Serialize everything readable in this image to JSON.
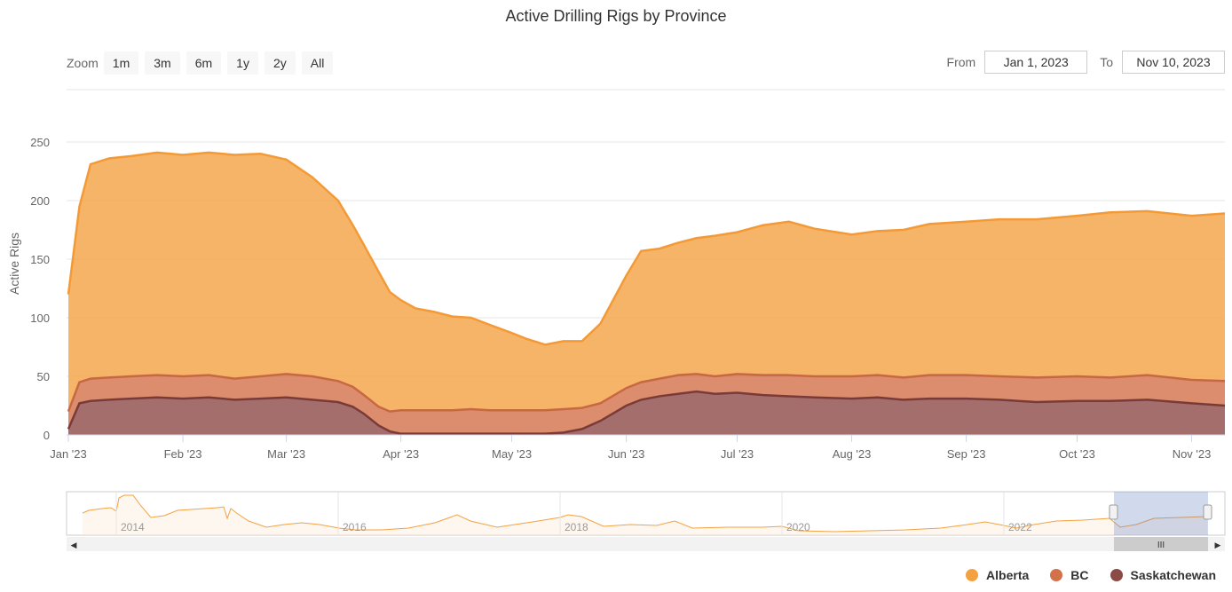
{
  "title": "Active Drilling Rigs by Province",
  "zoom": {
    "label": "Zoom",
    "buttons": [
      "1m",
      "3m",
      "6m",
      "1y",
      "2y",
      "All"
    ]
  },
  "range": {
    "from_label": "From",
    "from_value": "Jan 1, 2023",
    "to_label": "To",
    "to_value": "Nov 10, 2023"
  },
  "colors": {
    "alberta": "#f4a142",
    "bc": "#d2714a",
    "saskatchewan": "#8c4a47"
  },
  "navigator": {
    "years": [
      "2014",
      "2016",
      "2018",
      "2020",
      "2022"
    ]
  },
  "chart_data": {
    "type": "area",
    "stacking": "normal",
    "ylabel": "Active Rigs",
    "ylim": [
      0,
      250
    ],
    "yticks": [
      0,
      50,
      100,
      150,
      200,
      250
    ],
    "xlabels": [
      "Jan '23",
      "Feb '23",
      "Mar '23",
      "Apr '23",
      "May '23",
      "Jun '23",
      "Jul '23",
      "Aug '23",
      "Sep '23",
      "Oct '23",
      "Nov '23"
    ],
    "x": [
      "Jan 1, 2023",
      "Jan 4, 2023",
      "Jan 7, 2023",
      "Jan 12, 2023",
      "Jan 18, 2023",
      "Jan 25, 2023",
      "Feb 1, 2023",
      "Feb 8, 2023",
      "Feb 15, 2023",
      "Feb 22, 2023",
      "Mar 1, 2023",
      "Mar 8, 2023",
      "Mar 15, 2023",
      "Mar 19, 2023",
      "Mar 22, 2023",
      "Mar 26, 2023",
      "Mar 29, 2023",
      "Apr 1, 2023",
      "Apr 5, 2023",
      "Apr 10, 2023",
      "Apr 15, 2023",
      "Apr 20, 2023",
      "Apr 25, 2023",
      "May 1, 2023",
      "May 5, 2023",
      "May 10, 2023",
      "May 15, 2023",
      "May 20, 2023",
      "May 25, 2023",
      "Jun 1, 2023",
      "Jun 5, 2023",
      "Jun 10, 2023",
      "Jun 15, 2023",
      "Jun 20, 2023",
      "Jun 25, 2023",
      "Jul 1, 2023",
      "Jul 8, 2023",
      "Jul 15, 2023",
      "Jul 22, 2023",
      "Aug 1, 2023",
      "Aug 8, 2023",
      "Aug 15, 2023",
      "Aug 22, 2023",
      "Sep 1, 2023",
      "Sep 10, 2023",
      "Sep 20, 2023",
      "Oct 1, 2023",
      "Oct 10, 2023",
      "Oct 20, 2023",
      "Nov 1, 2023",
      "Nov 10, 2023"
    ],
    "series": [
      {
        "name": "Saskatchewan",
        "values": [
          5,
          27,
          29,
          30,
          31,
          32,
          31,
          32,
          30,
          31,
          32,
          30,
          28,
          24,
          18,
          8,
          3,
          1,
          1,
          1,
          1,
          1,
          1,
          1,
          1,
          1,
          2,
          5,
          12,
          25,
          30,
          33,
          35,
          37,
          35,
          36,
          34,
          33,
          32,
          31,
          32,
          30,
          31,
          31,
          30,
          28,
          29,
          29,
          30,
          27,
          25
        ]
      },
      {
        "name": "BC",
        "values": [
          15,
          18,
          19,
          19,
          19,
          19,
          19,
          19,
          18,
          19,
          20,
          20,
          18,
          17,
          16,
          16,
          17,
          20,
          20,
          20,
          20,
          21,
          20,
          20,
          20,
          20,
          20,
          18,
          15,
          15,
          15,
          15,
          16,
          15,
          15,
          16,
          17,
          18,
          18,
          19,
          19,
          19,
          20,
          20,
          20,
          21,
          21,
          20,
          21,
          20,
          21
        ]
      },
      {
        "name": "Alberta",
        "values": [
          100,
          150,
          183,
          187,
          188,
          190,
          189,
          190,
          191,
          190,
          183,
          170,
          154,
          138,
          128,
          115,
          102,
          94,
          87,
          84,
          80,
          78,
          73,
          66,
          61,
          56,
          58,
          57,
          68,
          96,
          112,
          111,
          113,
          116,
          120,
          121,
          128,
          131,
          126,
          121,
          123,
          126,
          129,
          131,
          134,
          135,
          137,
          141,
          140,
          140,
          143
        ]
      }
    ]
  }
}
